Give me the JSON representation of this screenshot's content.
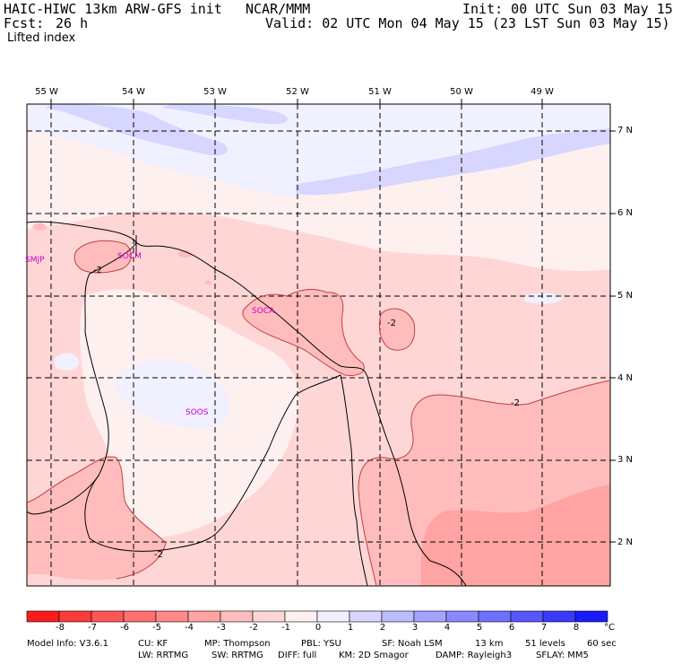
{
  "header": {
    "model": "HAIC-HIWC 13km ARW-GFS init",
    "org": "NCAR/MMM",
    "init": "Init: 00 UTC Sun 03 May 15",
    "fcst_label": "Fcst:",
    "fcst_value": "26 h",
    "valid": "Valid: 02 UTC Mon 04 May 15 (23 LST Sun 03 May 15)",
    "field": "Lifted index"
  },
  "map": {
    "longitudes": [
      "55 W",
      "54 W",
      "53 W",
      "52 W",
      "51 W",
      "50 W",
      "49 W"
    ],
    "latitudes": [
      "7 N",
      "6 N",
      "5 N",
      "4 N",
      "3 N",
      "2 N"
    ],
    "stations": [
      "SMJP",
      "SOCM",
      "SOCA",
      "SOOS"
    ],
    "contour_label": "-2"
  },
  "colorbar": {
    "values": [
      "-8",
      "-7",
      "-6",
      "-5",
      "-4",
      "-3",
      "-2",
      "-1",
      "0",
      "1",
      "2",
      "3",
      "4",
      "5",
      "6",
      "7",
      "8"
    ],
    "unit": "°C",
    "colors": [
      "#ff1a1a",
      "#ff3a3a",
      "#ff5656",
      "#ff7070",
      "#ff8989",
      "#ffa3a3",
      "#ffbcbc",
      "#ffd6d6",
      "#fff0f0",
      "#f0f0ff",
      "#d6d6ff",
      "#bcbcff",
      "#a3a3ff",
      "#8989ff",
      "#7070ff",
      "#5656ff",
      "#3a3aff",
      "#1a1aff"
    ]
  },
  "footer": {
    "line1": [
      "Model Info: V3.6.1",
      "CU: KF",
      "MP: Thompson",
      "PBL: YSU",
      "SF: Noah LSM",
      "13 km",
      "51 levels",
      "60 sec"
    ],
    "line2": [
      "LW: RRTMG",
      "SW: RRTMG",
      "DIFF: full",
      "KM: 2D Smagor",
      "DAMP: Rayleigh3",
      "SFLAY: MM5"
    ]
  }
}
